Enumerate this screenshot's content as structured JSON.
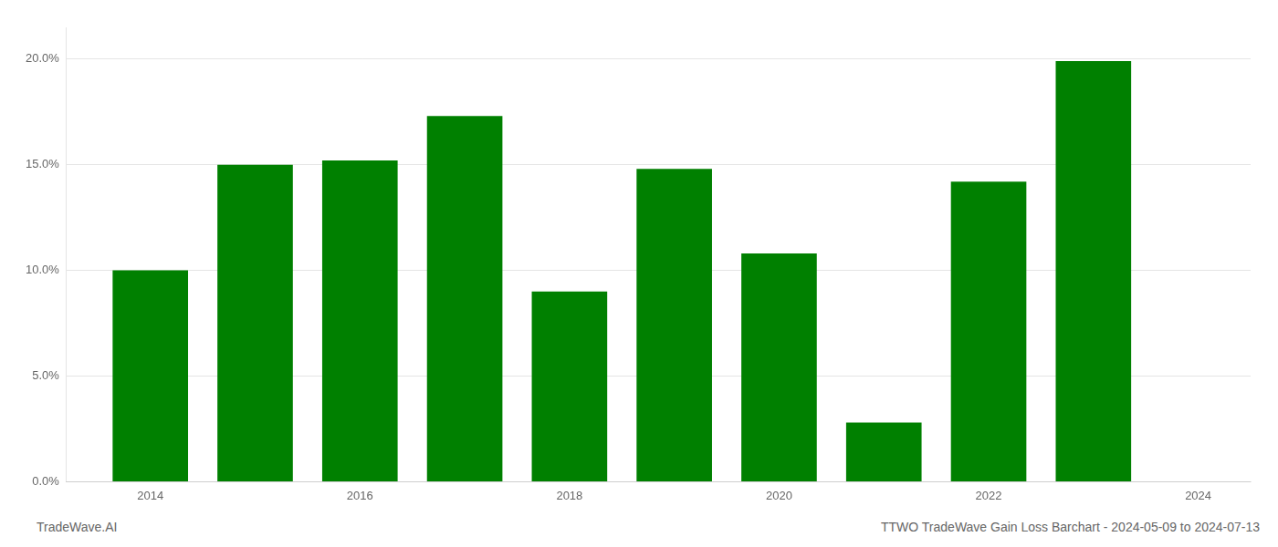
{
  "chart_data": {
    "type": "bar",
    "x": [
      2014,
      2015,
      2016,
      2017,
      2018,
      2019,
      2020,
      2021,
      2022,
      2023
    ],
    "values": [
      0.1,
      0.15,
      0.152,
      0.173,
      0.09,
      0.148,
      0.108,
      0.028,
      0.142,
      0.199
    ],
    "color": "#008000",
    "xlim": [
      2013.2,
      2024.5
    ],
    "xticks": [
      2014,
      2016,
      2018,
      2020,
      2022,
      2024
    ],
    "ylim": [
      0,
      0.215
    ],
    "yticks": [
      {
        "value": 0.0,
        "label": "0.0%"
      },
      {
        "value": 0.05,
        "label": "5.0%"
      },
      {
        "value": 0.1,
        "label": "10.0%"
      },
      {
        "value": 0.15,
        "label": "15.0%"
      },
      {
        "value": 0.2,
        "label": "20.0%"
      }
    ],
    "grid": "y",
    "annotations": [
      "TradeWave.AI",
      "TTWO TradeWave Gain Loss Barchart - 2024-05-09 to 2024-07-13"
    ]
  }
}
